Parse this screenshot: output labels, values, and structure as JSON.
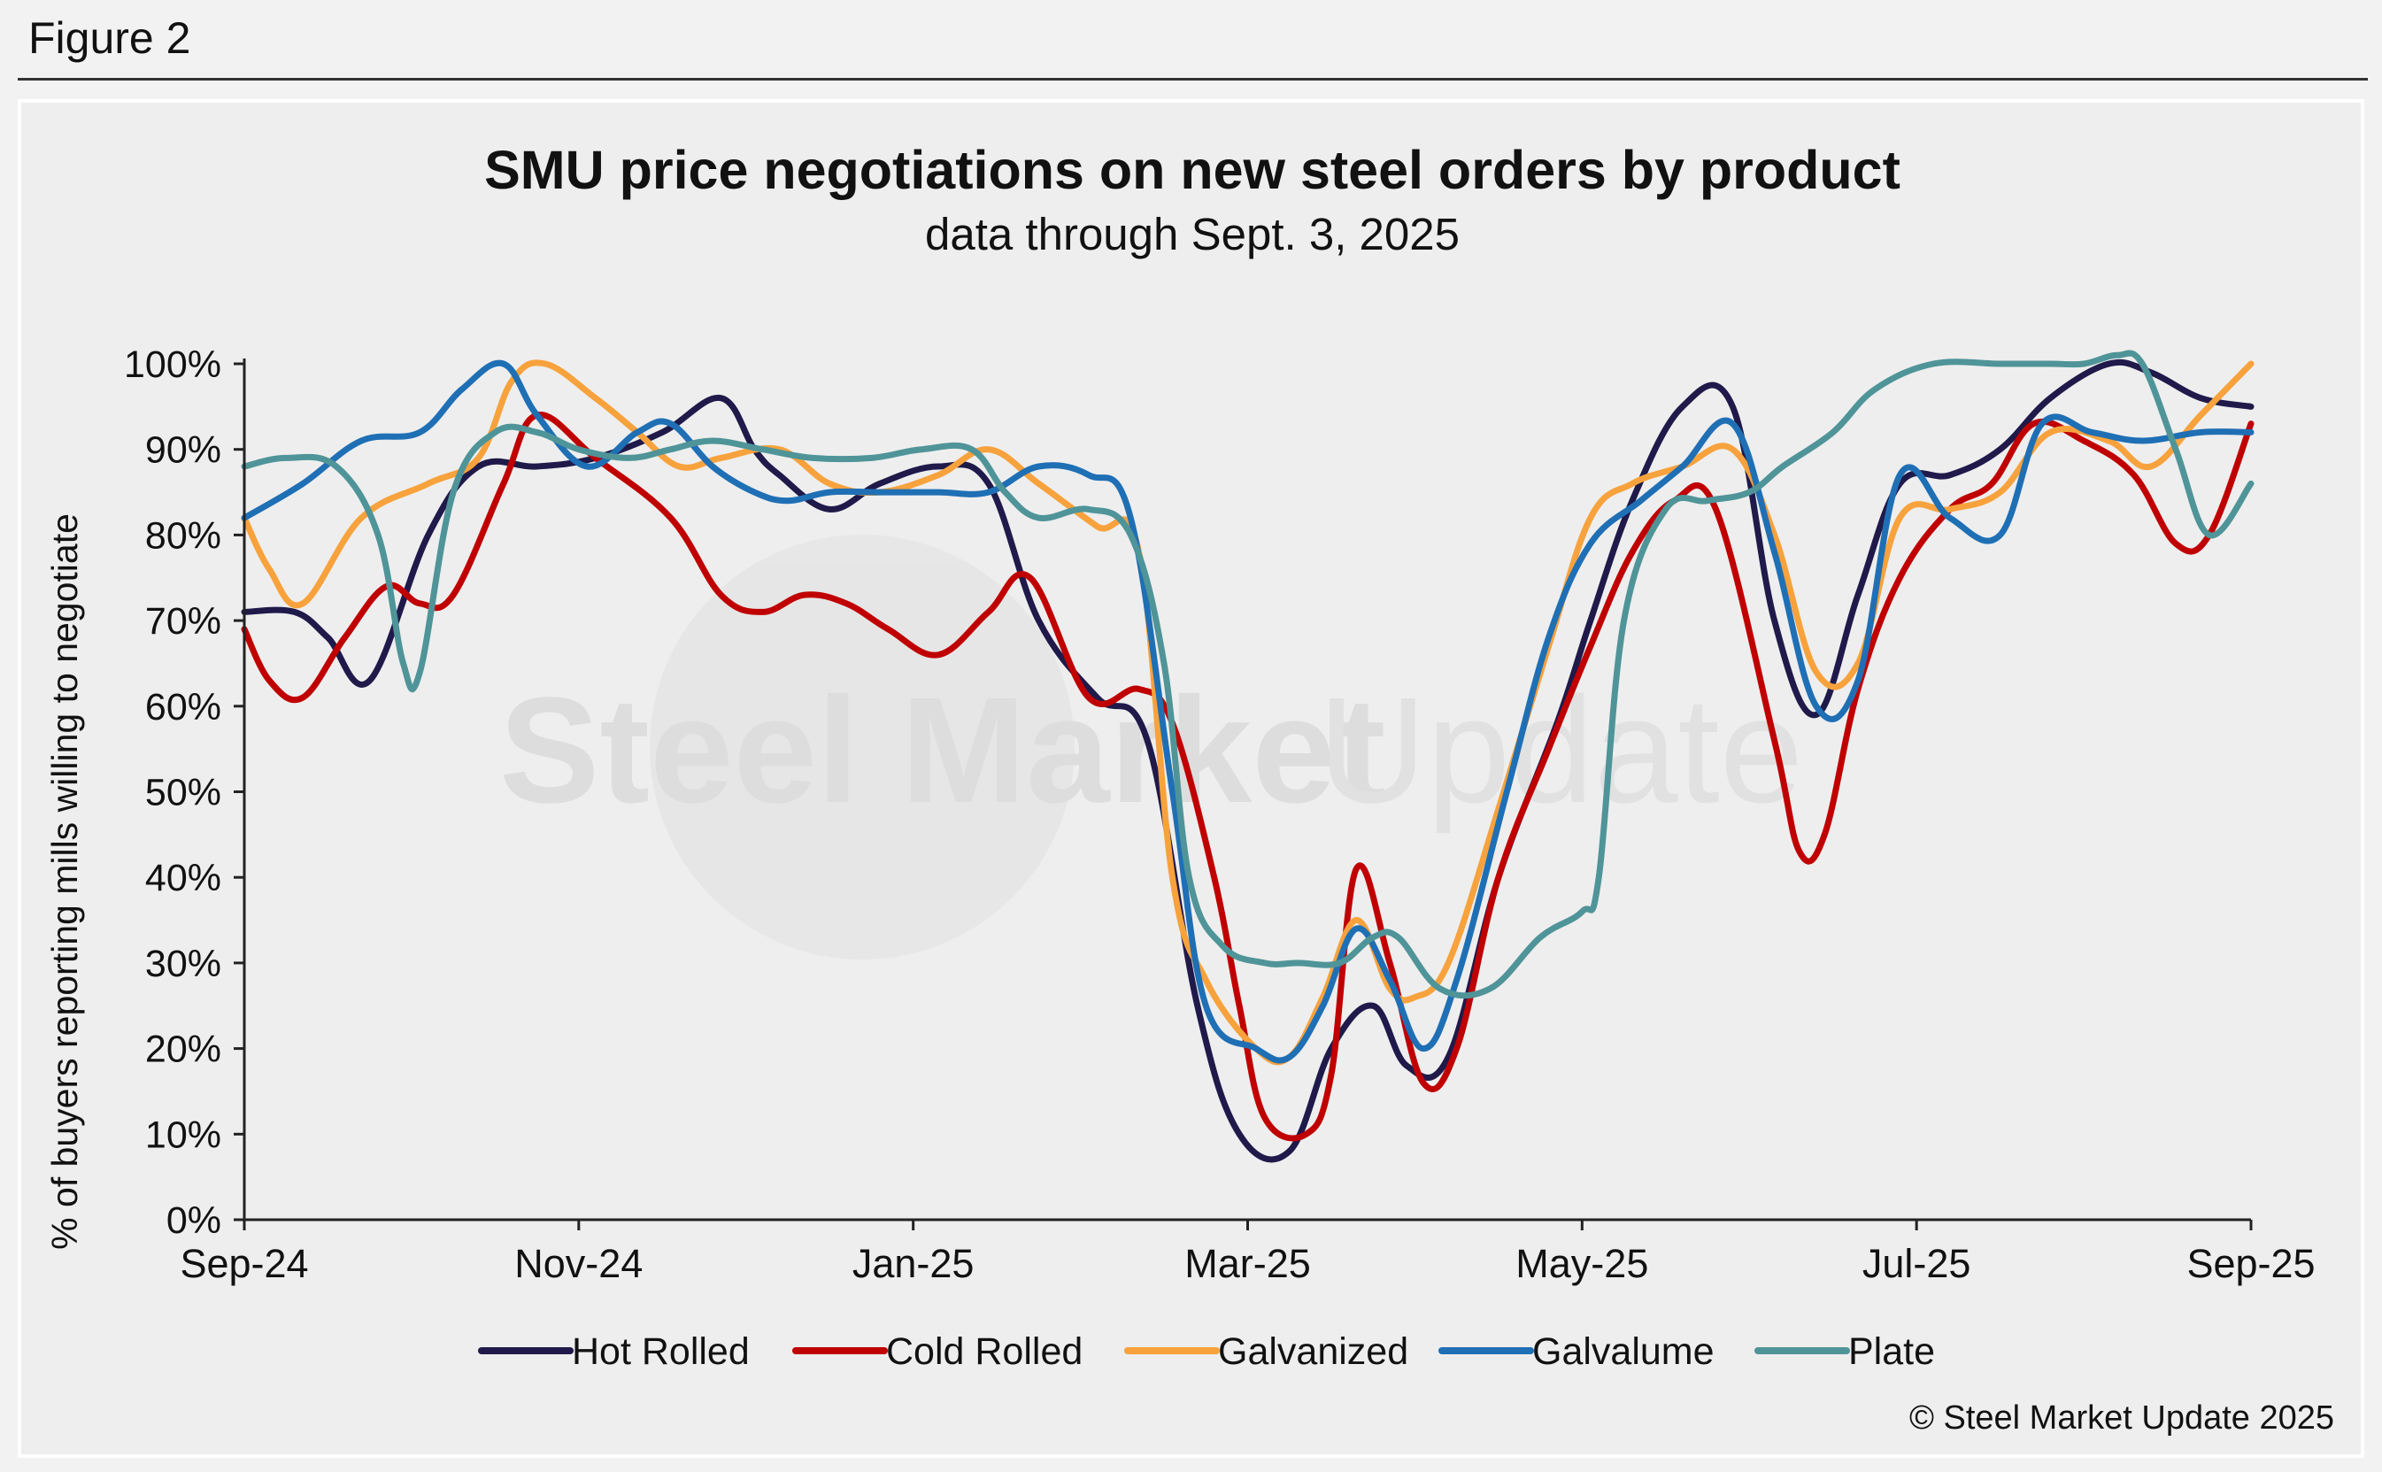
{
  "figure_label": "Figure 2",
  "copyright": "© Steel Market Update 2025",
  "watermark": {
    "bold": "Steel Market",
    "light": "Update"
  },
  "colors": {
    "hot_rolled": "#1f1a4a",
    "cold_rolled": "#c00000",
    "galvanized": "#f7a23c",
    "galvalume": "#1f6fb5",
    "plate": "#4f9498",
    "axis": "#222222",
    "background": "#eeeeee"
  },
  "chart_data": {
    "type": "line",
    "title": "SMU price negotiations on new steel orders by product",
    "subtitle": "data through Sept. 3, 2025",
    "ylabel": "% of buyers reporting mills willing to negotiate",
    "xlabel": "",
    "ylim": [
      0,
      100
    ],
    "y_ticks": [
      "0%",
      "10%",
      "20%",
      "30%",
      "40%",
      "50%",
      "60%",
      "70%",
      "80%",
      "90%",
      "100%"
    ],
    "x_range_months": [
      0,
      12
    ],
    "x_ticks": [
      {
        "label": "Sep-24",
        "m": 0
      },
      {
        "label": "Nov-24",
        "m": 2
      },
      {
        "label": "Jan-25",
        "m": 4
      },
      {
        "label": "Mar-25",
        "m": 6
      },
      {
        "label": "May-25",
        "m": 8
      },
      {
        "label": "Jul-25",
        "m": 10
      },
      {
        "label": "Sep-25",
        "m": 12
      }
    ],
    "legend_position": "bottom",
    "series": [
      {
        "name": "Hot Rolled",
        "color_key": "hot_rolled",
        "x": [
          0,
          0.3,
          0.5,
          0.75,
          1.1,
          1.4,
          1.75,
          2.1,
          2.5,
          2.85,
          3.05,
          3.2,
          3.5,
          3.8,
          4.15,
          4.45,
          4.75,
          5.1,
          5.4,
          5.7,
          5.95,
          6.25,
          6.5,
          6.75,
          6.95,
          7.2,
          7.5,
          7.85,
          8.05,
          8.3,
          8.6,
          8.9,
          9.15,
          9.4,
          9.65,
          9.9,
          10.2,
          10.5,
          10.8,
          11.15,
          11.4,
          11.7,
          12
        ],
        "y": [
          71,
          71,
          68,
          63,
          80,
          88,
          88,
          89,
          92,
          96,
          90,
          87,
          83,
          86,
          88,
          86,
          70,
          61,
          56,
          25,
          10,
          8,
          20,
          25,
          18,
          19,
          40,
          58,
          70,
          84,
          95,
          95,
          70,
          59,
          73,
          86,
          87,
          90,
          96,
          100,
          99,
          96,
          95
        ]
      },
      {
        "name": "Cold Rolled",
        "color_key": "cold_rolled",
        "x": [
          0,
          0.15,
          0.35,
          0.6,
          0.85,
          1.05,
          1.25,
          1.55,
          1.75,
          2.1,
          2.55,
          2.85,
          3.1,
          3.35,
          3.6,
          3.85,
          4.15,
          4.45,
          4.7,
          5.05,
          5.35,
          5.55,
          5.8,
          5.95,
          6.1,
          6.35,
          6.5,
          6.65,
          6.85,
          7.05,
          7.25,
          7.5,
          7.8,
          8.05,
          8.3,
          8.55,
          8.8,
          9.15,
          9.3,
          9.45,
          9.65,
          9.9,
          10.2,
          10.45,
          10.7,
          11.0,
          11.3,
          11.55,
          11.75,
          12
        ],
        "y": [
          69,
          63,
          61,
          68,
          74,
          72,
          73,
          86,
          94,
          89,
          82,
          73,
          71,
          73,
          72,
          69,
          66,
          71,
          75,
          61,
          62,
          58,
          40,
          25,
          12,
          10,
          17,
          41,
          30,
          16,
          20,
          40,
          55,
          67,
          78,
          84,
          83,
          56,
          43,
          45,
          62,
          75,
          83,
          86,
          93,
          91,
          87,
          79,
          80,
          93
        ]
      },
      {
        "name": "Galvanized",
        "color_key": "galvanized",
        "x": [
          0,
          0.15,
          0.35,
          0.7,
          1.1,
          1.4,
          1.6,
          1.8,
          2.1,
          2.35,
          2.6,
          2.85,
          3.2,
          3.5,
          3.8,
          4.15,
          4.45,
          4.75,
          5.1,
          5.35,
          5.55,
          5.75,
          6.05,
          6.25,
          6.45,
          6.65,
          6.85,
          7.0,
          7.2,
          7.5,
          7.8,
          8.05,
          8.3,
          8.6,
          8.9,
          9.15,
          9.4,
          9.65,
          9.9,
          10.2,
          10.5,
          10.8,
          11.15,
          11.4,
          11.7,
          12
        ],
        "y": [
          82,
          76,
          72,
          82,
          86,
          89,
          98,
          100,
          96,
          92,
          88,
          89,
          90,
          86,
          85,
          87,
          90,
          86,
          81,
          78,
          40,
          28,
          20,
          19,
          26,
          35,
          27,
          26,
          30,
          48,
          67,
          82,
          86,
          88,
          90,
          80,
          64,
          65,
          82,
          83,
          85,
          92,
          91,
          88,
          94,
          100
        ]
      },
      {
        "name": "Galvalume",
        "color_key": "galvalume",
        "x": [
          0,
          0.35,
          0.7,
          1.05,
          1.3,
          1.55,
          1.75,
          2.05,
          2.35,
          2.55,
          2.8,
          3.05,
          3.25,
          3.5,
          3.8,
          4.15,
          4.45,
          4.75,
          5.05,
          5.3,
          5.55,
          5.75,
          6.05,
          6.25,
          6.45,
          6.65,
          6.85,
          7.05,
          7.25,
          7.55,
          7.8,
          8.05,
          8.35,
          8.6,
          8.9,
          9.15,
          9.4,
          9.65,
          9.9,
          10.2,
          10.5,
          10.75,
          11.05,
          11.35,
          11.7,
          12
        ],
        "y": [
          82,
          86,
          91,
          92,
          97,
          100,
          94,
          88,
          92,
          93,
          88,
          85,
          84,
          85,
          85,
          85,
          85,
          88,
          87,
          82,
          50,
          25,
          20,
          19,
          25,
          34,
          28,
          20,
          28,
          50,
          68,
          79,
          84,
          88,
          93,
          78,
          60,
          63,
          87,
          82,
          80,
          93,
          92,
          91,
          92,
          92
        ]
      },
      {
        "name": "Plate",
        "color_key": "plate",
        "x": [
          0,
          0.25,
          0.55,
          0.8,
          0.95,
          1.05,
          1.25,
          1.5,
          1.75,
          2.0,
          2.3,
          2.55,
          2.8,
          3.1,
          3.4,
          3.75,
          4.05,
          4.35,
          4.55,
          4.75,
          5.05,
          5.3,
          5.5,
          5.65,
          5.85,
          6.1,
          6.3,
          6.55,
          6.75,
          6.9,
          7.15,
          7.45,
          7.75,
          8.0,
          8.1,
          8.25,
          8.5,
          8.75,
          9.0,
          9.2,
          9.5,
          9.75,
          10.1,
          10.5,
          10.8,
          11.0,
          11.2,
          11.35,
          11.55,
          11.75,
          12
        ],
        "y": [
          88,
          89,
          88,
          80,
          65,
          64,
          85,
          92,
          92,
          90,
          89,
          90,
          91,
          90,
          89,
          89,
          90,
          90,
          85,
          82,
          83,
          80,
          65,
          40,
          32,
          30,
          30,
          30,
          33,
          33,
          27,
          27,
          33,
          36,
          40,
          70,
          83,
          84,
          85,
          88,
          92,
          97,
          100,
          100,
          100,
          100,
          101,
          100,
          90,
          80,
          86
        ]
      }
    ]
  }
}
